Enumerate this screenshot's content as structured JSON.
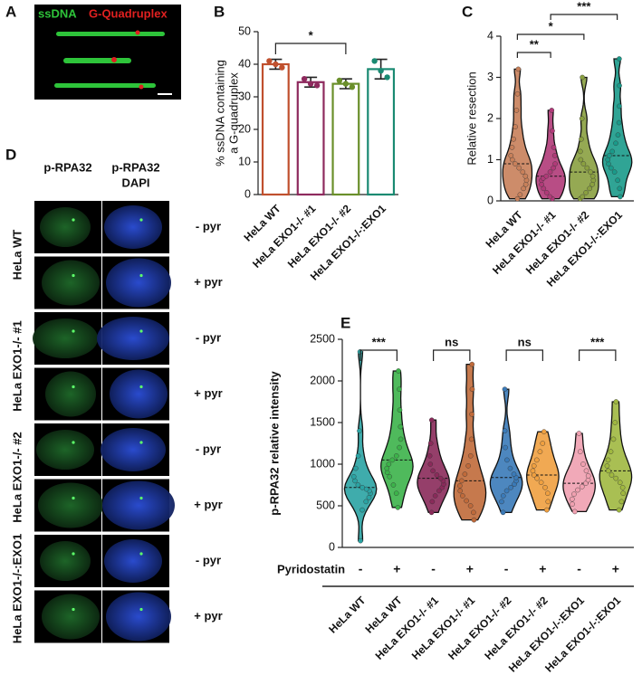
{
  "panel_labels": [
    "A",
    "B",
    "C",
    "D",
    "E"
  ],
  "panel_a": {
    "labels": [
      "ssDNA",
      "G-Quadruplex"
    ]
  },
  "panel_d": {
    "columns": [
      [
        "p-RPA32"
      ],
      [
        "p-RPA32",
        "DAPI"
      ]
    ],
    "groups": [
      "HeLa WT",
      "HeLa EXO1-/- #1",
      "HeLa EXO1-/- #2",
      "HeLa EXO1-/-:EXO1"
    ],
    "treatments": [
      "- pyr",
      "+ pyr",
      "- pyr",
      "+ pyr",
      "- pyr",
      "+ pyr",
      "- pyr",
      "+ pyr"
    ]
  },
  "chart_data": [
    {
      "type": "bar",
      "y_label": [
        "% ssDNA containing",
        "a G-quadruplex"
      ],
      "categories": [
        "HeLa WT",
        "HeLa EXO1-/- #1",
        "HeLa EXO1-/- #2",
        "HeLa EXO1-/-:EXO1"
      ],
      "values": [
        40,
        34.5,
        34,
        38.5
      ],
      "errors": [
        1.5,
        1.5,
        1.5,
        3
      ],
      "points": [
        [
          41,
          40,
          39
        ],
        [
          35.5,
          34,
          33.5
        ],
        [
          35,
          34,
          33
        ],
        [
          41,
          38,
          36
        ]
      ],
      "colors": [
        "#c0502e",
        "#8e2a5e",
        "#6a8f2a",
        "#1a8a72"
      ],
      "ylim": [
        0,
        50
      ],
      "yticks": [
        0,
        10,
        20,
        30,
        40,
        50
      ],
      "annotations": [
        "*"
      ]
    },
    {
      "type": "violin",
      "y_label": "Relative resection",
      "categories": [
        "HeLa WT",
        "HeLa EXO1-/- #1",
        "HeLa EXO1-/- #2",
        "HeLa EXO1-/-:EXO1"
      ],
      "series": [
        {
          "color": "#c8805a",
          "values": [
            0.05,
            0.15,
            0.3,
            0.4,
            0.5,
            0.6,
            0.7,
            0.8,
            0.9,
            1.0,
            1.1,
            1.3,
            1.5,
            1.8,
            2.2,
            2.6,
            3.2
          ]
        },
        {
          "color": "#b03a78",
          "values": [
            0.05,
            0.1,
            0.2,
            0.3,
            0.4,
            0.5,
            0.55,
            0.6,
            0.7,
            0.8,
            0.9,
            1.1,
            1.3,
            1.7,
            2.2
          ]
        },
        {
          "color": "#8aa040",
          "values": [
            0.05,
            0.1,
            0.2,
            0.3,
            0.4,
            0.5,
            0.6,
            0.7,
            0.8,
            0.9,
            1.0,
            1.2,
            1.5,
            2.0,
            3.0
          ]
        },
        {
          "color": "#1a9a8a",
          "values": [
            0.1,
            0.3,
            0.5,
            0.7,
            0.8,
            0.9,
            1.0,
            1.1,
            1.2,
            1.4,
            1.6,
            1.9,
            2.3,
            2.8,
            3.45
          ]
        }
      ],
      "ylim": [
        0,
        4
      ],
      "yticks": [
        0,
        1,
        2,
        3,
        4
      ],
      "annotations": [
        "**",
        "*",
        "***"
      ]
    },
    {
      "type": "violin",
      "y_label": "p-RPA32 relative intensity",
      "categories": [
        "HeLa WT",
        "HeLa WT",
        "HeLa EXO1-/- #1",
        "HeLa EXO1-/- #1",
        "HeLa EXO1-/- #2",
        "HeLa EXO1-/- #2",
        "HeLa EXO1-/-:EXO1",
        "HeLa EXO1-/-:EXO1"
      ],
      "treatment_label": "Pyridostatin",
      "treatments": [
        "-",
        "+",
        "-",
        "+",
        "-",
        "+",
        "-",
        "+"
      ],
      "series": [
        {
          "color": "#2aa3a3",
          "values": [
            80,
            450,
            550,
            600,
            650,
            680,
            700,
            720,
            750,
            800,
            850,
            950,
            1100,
            1400,
            2350
          ]
        },
        {
          "color": "#3cb34a",
          "values": [
            480,
            650,
            750,
            850,
            900,
            950,
            1000,
            1050,
            1100,
            1200,
            1300,
            1450,
            1650,
            1900,
            2120
          ]
        },
        {
          "color": "#8a2a5a",
          "values": [
            420,
            550,
            620,
            680,
            720,
            760,
            800,
            830,
            870,
            920,
            1000,
            1100,
            1250,
            1530
          ]
        },
        {
          "color": "#c06a3a",
          "values": [
            330,
            420,
            500,
            560,
            620,
            680,
            740,
            800,
            880,
            980,
            1100,
            1300,
            1600,
            1900,
            2200
          ]
        },
        {
          "color": "#3a7ab8",
          "values": [
            420,
            550,
            620,
            680,
            720,
            760,
            800,
            840,
            880,
            950,
            1050,
            1200,
            1400,
            1900
          ]
        },
        {
          "color": "#f0a040",
          "values": [
            450,
            550,
            650,
            720,
            780,
            830,
            870,
            920,
            980,
            1050,
            1150,
            1250,
            1390
          ]
        },
        {
          "color": "#f0a0b0",
          "values": [
            430,
            520,
            580,
            640,
            690,
            730,
            770,
            810,
            860,
            920,
            1000,
            1150,
            1370
          ]
        },
        {
          "color": "#a0b840",
          "values": [
            450,
            550,
            650,
            720,
            780,
            830,
            870,
            920,
            980,
            1050,
            1150,
            1300,
            1500,
            1750
          ]
        }
      ],
      "ylim": [
        0,
        2500
      ],
      "yticks": [
        0,
        500,
        1000,
        1500,
        2000,
        2500
      ],
      "annotations": [
        "***",
        "ns",
        "ns",
        "***"
      ]
    }
  ]
}
